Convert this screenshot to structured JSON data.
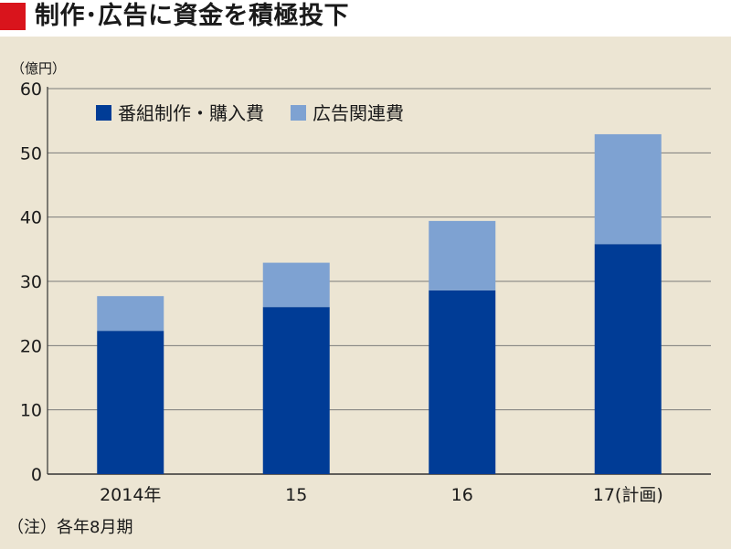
{
  "header": {
    "title": "制作･広告に資金を積極投下"
  },
  "colors": {
    "header_mark": "#d9141c",
    "background": "#ece5d3",
    "series_dark": "#003c96",
    "series_light": "#7ea2d2",
    "gridline": "#7a7a7a"
  },
  "chart_data": {
    "type": "bar",
    "stacked": true,
    "unit_label": "（億円）",
    "categories": [
      "2014年",
      "15",
      "16",
      "17(計画)"
    ],
    "series": [
      {
        "name": "番組制作・購入費",
        "values": [
          22.3,
          26.0,
          28.6,
          35.8
        ],
        "color": "#003c96"
      },
      {
        "name": "広告関連費",
        "values": [
          5.4,
          6.9,
          10.8,
          17.1
        ],
        "color": "#7ea2d2"
      }
    ],
    "y_ticks": [
      "0",
      "10",
      "20",
      "30",
      "40",
      "50",
      "60"
    ],
    "ylim": [
      0,
      60
    ],
    "grid": true,
    "legend_position": "top-left"
  },
  "footnote": "（注）各年8月期"
}
